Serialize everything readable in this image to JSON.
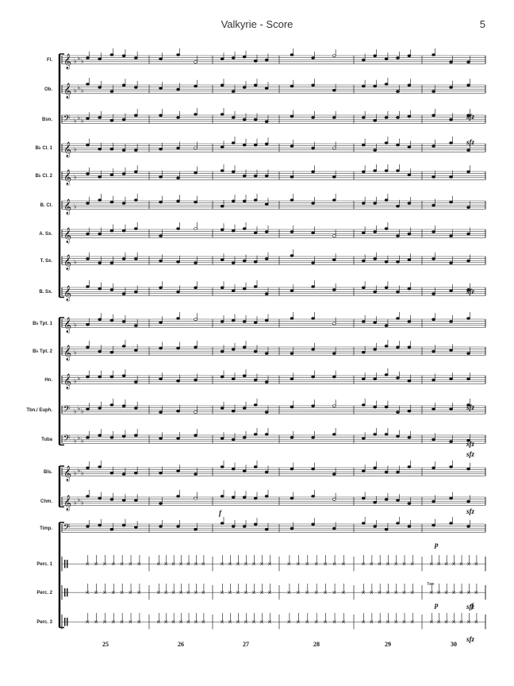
{
  "header": {
    "title": "Valkyrie - Score",
    "page_number": "5"
  },
  "instruments": [
    {
      "name": "Fl.",
      "clef": "treble",
      "key": "flats3",
      "group": 1
    },
    {
      "name": "Ob.",
      "clef": "treble",
      "key": "flats3",
      "group": 1
    },
    {
      "name": "Bsn.",
      "clef": "bass",
      "key": "flats3",
      "group": 1
    },
    {
      "name": "B♭ Cl. 1",
      "clef": "treble",
      "key": "flat1",
      "group": 1
    },
    {
      "name": "B♭ Cl. 2",
      "clef": "treble",
      "key": "flat1",
      "group": 1
    },
    {
      "name": "B. Cl.",
      "clef": "treble",
      "key": "flat1",
      "group": 1
    },
    {
      "name": "A. Sx.",
      "clef": "treble",
      "key": "none",
      "group": 1
    },
    {
      "name": "T. Sx.",
      "clef": "treble",
      "key": "flat1",
      "group": 1
    },
    {
      "name": "B. Sx.",
      "clef": "treble",
      "key": "none",
      "group": 1
    },
    {
      "name": "B♭ Tpt. 1",
      "clef": "treble",
      "key": "flat1",
      "group": 2
    },
    {
      "name": "B♭ Tpt. 2",
      "clef": "treble",
      "key": "flat1",
      "group": 2
    },
    {
      "name": "Hn.",
      "clef": "treble",
      "key": "flats2",
      "group": 2
    },
    {
      "name": "Tbn./ Euph.",
      "clef": "bass",
      "key": "flats3",
      "group": 2
    },
    {
      "name": "Tuba",
      "clef": "bass",
      "key": "flats3",
      "group": 2
    },
    {
      "name": "Bls.",
      "clef": "treble",
      "key": "flats3",
      "group": 3
    },
    {
      "name": "Chm.",
      "clef": "treble",
      "key": "flats3",
      "group": 3
    },
    {
      "name": "Timp.",
      "clef": "bass",
      "key": "none",
      "group": 4
    },
    {
      "name": "Perc. 1",
      "clef": "perc",
      "key": "none",
      "group": 4
    },
    {
      "name": "Perc. 2",
      "clef": "perc",
      "key": "none",
      "group": 4
    },
    {
      "name": "Perc. 3",
      "clef": "perc",
      "key": "none",
      "group": 4
    }
  ],
  "measure_numbers": [
    "25",
    "26",
    "27",
    "28",
    "29",
    "30"
  ],
  "annotations": {
    "sfz": "sfz",
    "forte": "f",
    "piano": "p",
    "tom": "Tom"
  }
}
